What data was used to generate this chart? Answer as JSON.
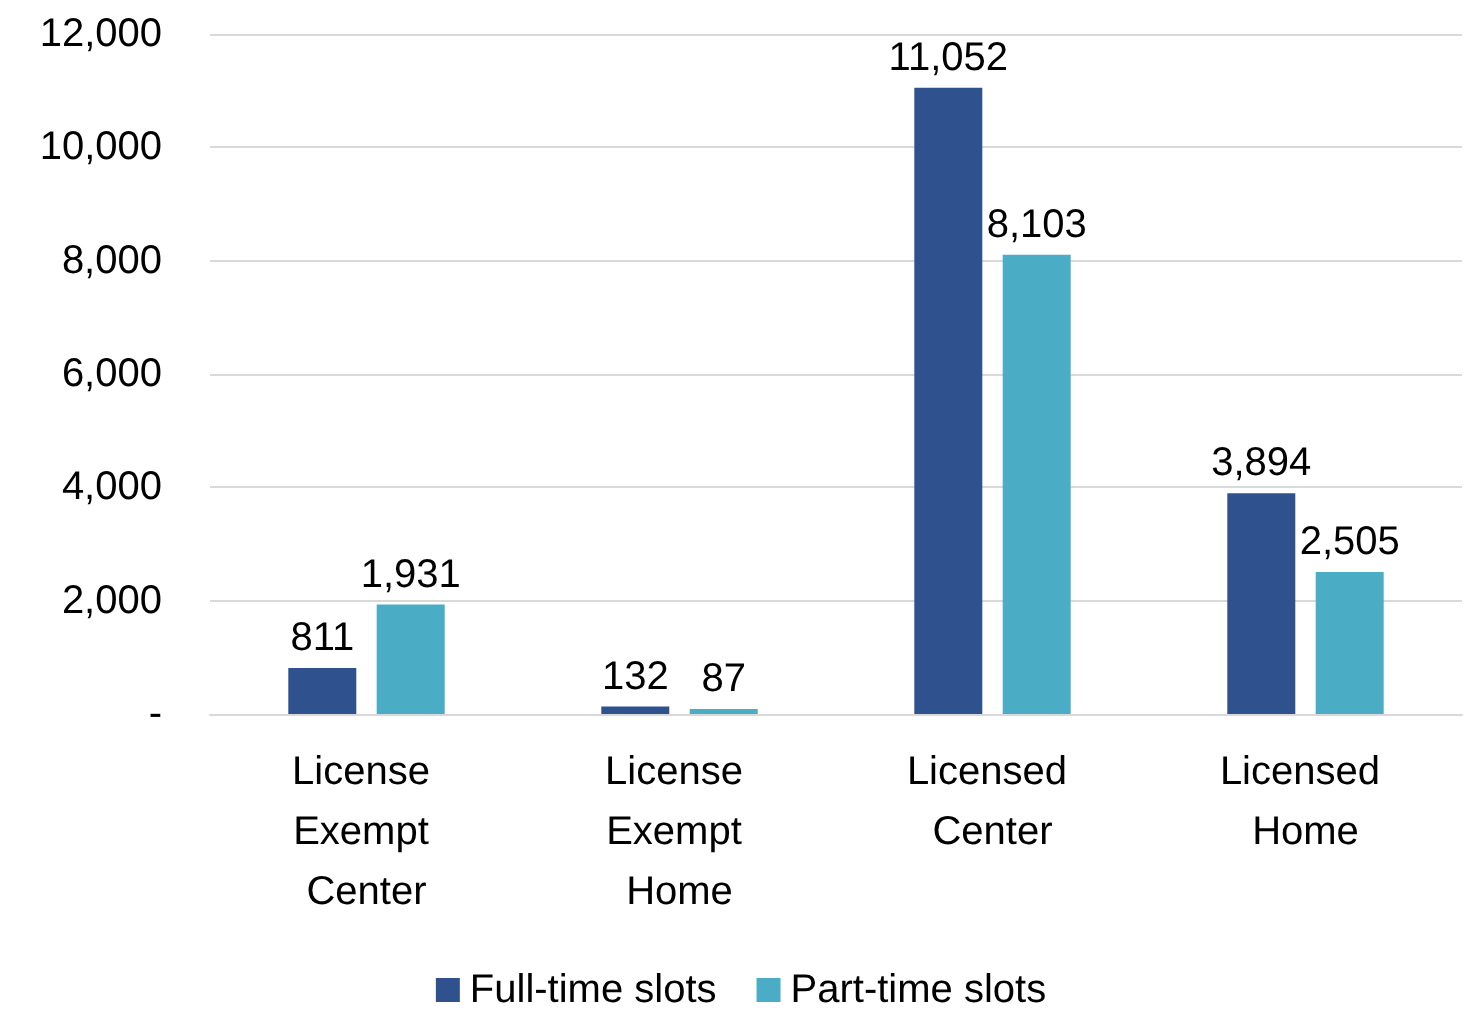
{
  "chart_data": {
    "type": "bar",
    "categories": [
      "License Exempt Center",
      "License Exempt Home",
      "Licensed Center",
      "Licensed Home"
    ],
    "series": [
      {
        "name": "Full-time slots",
        "color": "#2f528f",
        "values": [
          811,
          132,
          11052,
          3894
        ],
        "value_labels": [
          "811",
          "132",
          "11,052",
          "3,894"
        ]
      },
      {
        "name": "Part-time slots",
        "color": "#4bacc6",
        "values": [
          1931,
          87,
          8103,
          2505
        ],
        "value_labels": [
          "1,931",
          "87",
          "8,103",
          "2,505"
        ]
      }
    ],
    "ylim": [
      0,
      12000
    ],
    "yticks": [
      {
        "value": 0,
        "label": "-"
      },
      {
        "value": 2000,
        "label": "2,000"
      },
      {
        "value": 4000,
        "label": "4,000"
      },
      {
        "value": 6000,
        "label": "6,000"
      },
      {
        "value": 8000,
        "label": "8,000"
      },
      {
        "value": 10000,
        "label": "10,000"
      },
      {
        "value": 12000,
        "label": "12,000"
      }
    ],
    "grid": "y",
    "legend": "bottom"
  }
}
